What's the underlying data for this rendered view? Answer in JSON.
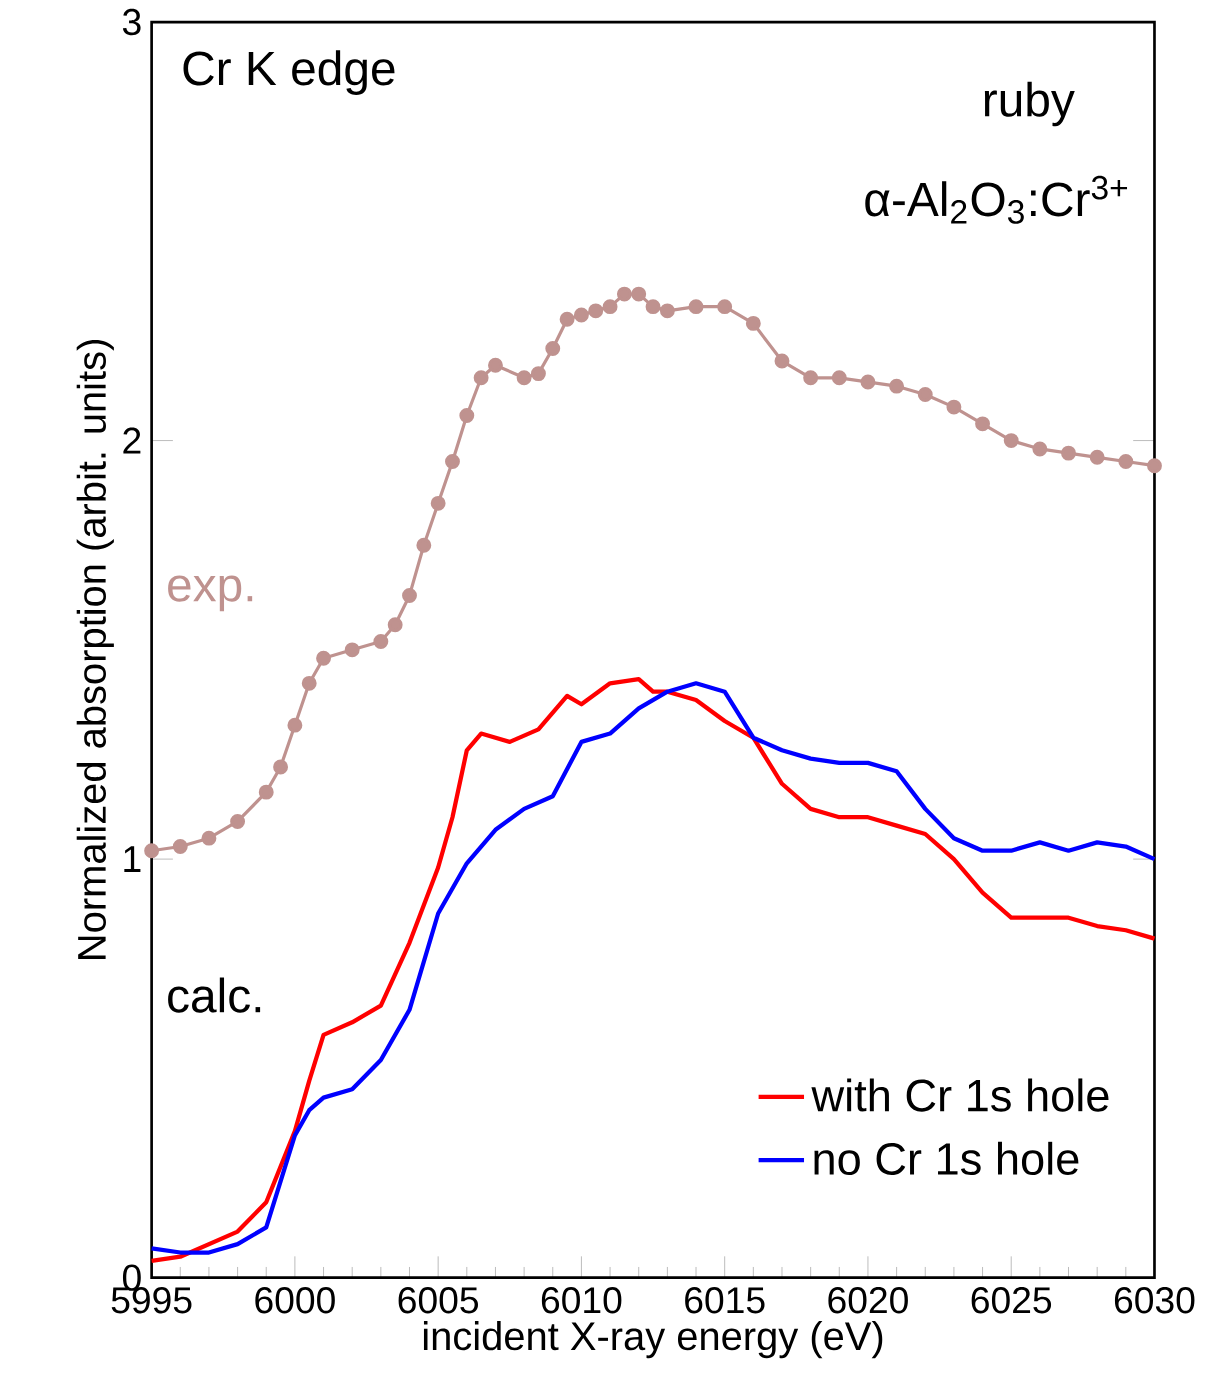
{
  "chart_data": {
    "type": "line",
    "xlabel": "incident X-ray energy (eV)",
    "ylabel": "Normalized absorption (arbit. units)",
    "annotations": [
      "Cr K edge",
      "ruby",
      "α-Al$_{2}$O$_{3}$:Cr$^{3+}$",
      "calc."
    ],
    "xlim": [
      5995,
      6030
    ],
    "ylim": [
      0,
      3
    ],
    "xticks": [
      5995,
      6000,
      6005,
      6010,
      6015,
      6020,
      6025,
      6030
    ],
    "yticks": [
      0,
      1,
      2,
      3
    ],
    "grid": false,
    "legend": "bottom right",
    "series": [
      {
        "name": "exp.",
        "color": "#bf928f",
        "marker": "circle",
        "x": [
          5995,
          5996,
          5997,
          5998,
          5999,
          5999.5,
          6000,
          6000.5,
          6001,
          6002,
          6003,
          6003.5,
          6004,
          6004.5,
          6005,
          6005.5,
          6006,
          6006.5,
          6007,
          6008,
          6008.5,
          6009,
          6009.5,
          6010,
          6010.5,
          6011,
          6011.5,
          6012,
          6012.5,
          6013,
          6014,
          6015,
          6016,
          6017,
          6018,
          6019,
          6020,
          6021,
          6022,
          6023,
          6024,
          6025,
          6026,
          6027,
          6028,
          6029,
          6030
        ],
        "values": [
          1.02,
          1.03,
          1.05,
          1.09,
          1.16,
          1.22,
          1.32,
          1.42,
          1.48,
          1.5,
          1.52,
          1.56,
          1.63,
          1.75,
          1.85,
          1.95,
          2.06,
          2.15,
          2.18,
          2.15,
          2.16,
          2.22,
          2.29,
          2.3,
          2.31,
          2.32,
          2.35,
          2.35,
          2.32,
          2.31,
          2.32,
          2.32,
          2.28,
          2.19,
          2.15,
          2.15,
          2.14,
          2.13,
          2.11,
          2.08,
          2.04,
          2.0,
          1.98,
          1.97,
          1.96,
          1.95,
          1.94
        ]
      },
      {
        "name": "with Cr 1s hole",
        "color": "#ff0000",
        "x": [
          5995,
          5996,
          5997,
          5998,
          5999,
          6000,
          6000.5,
          6001,
          6002,
          6003,
          6004,
          6005,
          6005.5,
          6006,
          6006.5,
          6007.5,
          6008.5,
          6009.5,
          6010,
          6011,
          6012,
          6012.5,
          6013,
          6014,
          6015,
          6016,
          6017,
          6018,
          6019,
          6020,
          6021,
          6022,
          6023,
          6024,
          6025,
          6026,
          6027,
          6028,
          6029,
          6030
        ],
        "values": [
          0.04,
          0.05,
          0.08,
          0.11,
          0.18,
          0.35,
          0.47,
          0.58,
          0.61,
          0.65,
          0.8,
          0.98,
          1.1,
          1.26,
          1.3,
          1.28,
          1.31,
          1.39,
          1.37,
          1.42,
          1.43,
          1.4,
          1.4,
          1.38,
          1.33,
          1.29,
          1.18,
          1.12,
          1.1,
          1.1,
          1.08,
          1.06,
          1.0,
          0.92,
          0.86,
          0.86,
          0.86,
          0.84,
          0.83,
          0.81
        ]
      },
      {
        "name": "no Cr 1s hole",
        "color": "#0000ff",
        "x": [
          5995,
          5996,
          5997,
          5998,
          5999,
          6000,
          6000.5,
          6001,
          6002,
          6003,
          6004,
          6005,
          6006,
          6007,
          6008,
          6009,
          6010,
          6011,
          6012,
          6013,
          6014,
          6015,
          6016,
          6017,
          6018,
          6019,
          6020,
          6021,
          6022,
          6023,
          6024,
          6025,
          6026,
          6027,
          6028,
          6029,
          6030
        ],
        "values": [
          0.07,
          0.06,
          0.06,
          0.08,
          0.12,
          0.34,
          0.4,
          0.43,
          0.45,
          0.52,
          0.64,
          0.87,
          0.99,
          1.07,
          1.12,
          1.15,
          1.28,
          1.3,
          1.36,
          1.4,
          1.42,
          1.4,
          1.29,
          1.26,
          1.24,
          1.23,
          1.23,
          1.21,
          1.12,
          1.05,
          1.02,
          1.02,
          1.04,
          1.02,
          1.04,
          1.03,
          1.0
        ]
      }
    ]
  }
}
